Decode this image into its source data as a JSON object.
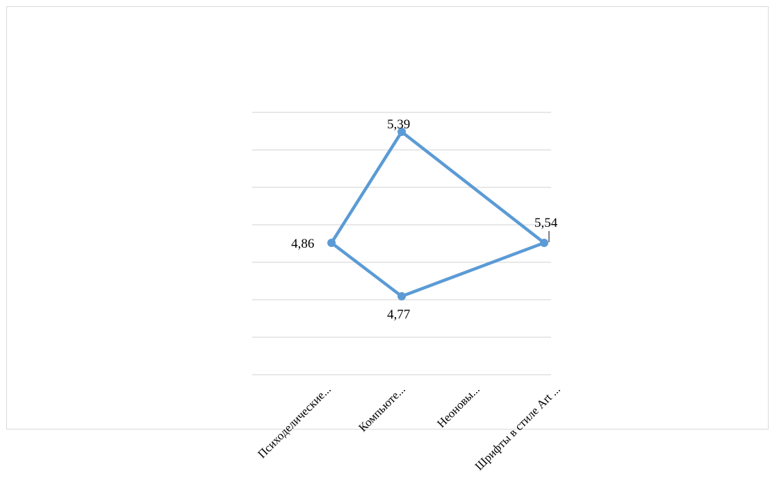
{
  "chart_data": {
    "type": "line",
    "categories": [
      "Психоделические...",
      "Компьюте...",
      "Неоновы...",
      "Шрифты в стиле Art ..."
    ],
    "series": [
      {
        "values": [
          4.86,
          5.39,
          5.54,
          4.77
        ],
        "labels": [
          "4,86",
          "5,39",
          "5,54",
          "4,77"
        ],
        "color": "#5b9bd5"
      }
    ],
    "title": "",
    "xlabel": "",
    "ylabel": "",
    "grid": true,
    "legend": "none"
  }
}
